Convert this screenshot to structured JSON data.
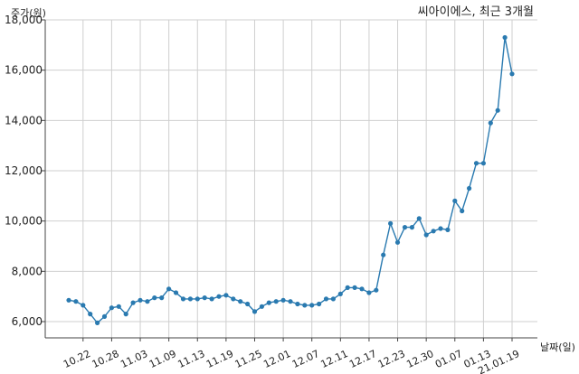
{
  "chart_data": {
    "type": "line",
    "title": "씨아이에스, 최근 3개월",
    "ylabel": "주가(원)",
    "xlabel": "날짜(일)",
    "ylim": [
      5300,
      18000
    ],
    "grid": true,
    "y_ticks": [
      "6,000",
      "8,000",
      "10,000",
      "12,000",
      "14,000",
      "16,000",
      "18,000"
    ],
    "y_tick_values": [
      6000,
      8000,
      10000,
      12000,
      14000,
      16000,
      18000
    ],
    "x_tick_labels": [
      "10.22",
      "10.28",
      "11.03",
      "11.09",
      "11.13",
      "11.19",
      "11.25",
      "12.01",
      "12.07",
      "12.11",
      "12.17",
      "12.23",
      "12.30",
      "01.07",
      "01.13",
      "21.01.19"
    ],
    "x_tick_indices": [
      2,
      6,
      10,
      14,
      18,
      22,
      26,
      30,
      34,
      38,
      42,
      46,
      50,
      54,
      58,
      62
    ],
    "series": [
      {
        "color": "#2a7ab0",
        "values": [
          6850,
          6800,
          6650,
          6300,
          5950,
          6200,
          6550,
          6600,
          6300,
          6750,
          6850,
          6800,
          6950,
          6950,
          7300,
          7150,
          6900,
          6900,
          6900,
          6950,
          6900,
          7000,
          7050,
          6900,
          6800,
          6700,
          6400,
          6600,
          6750,
          6800,
          6850,
          6800,
          6700,
          6650,
          6650,
          6700,
          6900,
          6900,
          7100,
          7350,
          7350,
          7300,
          7150,
          7250,
          8650,
          9900,
          9150,
          9750,
          9750,
          10100,
          9450,
          9600,
          9700,
          9650,
          10800,
          10400,
          11300,
          12300,
          12300,
          13900,
          14400,
          17300,
          15850
        ]
      }
    ]
  }
}
